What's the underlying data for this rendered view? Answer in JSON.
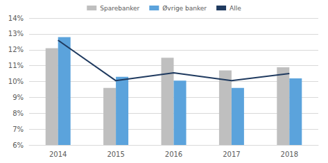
{
  "chart_data": {
    "type": "bar",
    "categories": [
      "2014",
      "2015",
      "2016",
      "2017",
      "2018"
    ],
    "series": [
      {
        "name": "Sparebanker",
        "type": "bar",
        "color": "#bfbfbf",
        "values": [
          12.1,
          9.6,
          11.5,
          10.7,
          10.9
        ]
      },
      {
        "name": "Øvrige banker",
        "type": "bar",
        "color": "#5ba3dc",
        "values": [
          12.8,
          10.3,
          10.05,
          9.6,
          10.2
        ]
      },
      {
        "name": "Alle",
        "type": "line",
        "color": "#1f3a5f",
        "values": [
          12.6,
          10.05,
          10.55,
          10.05,
          10.5
        ]
      }
    ],
    "ylim": [
      6,
      14
    ],
    "yticks": [
      {
        "value": 6,
        "label": "6%"
      },
      {
        "value": 7,
        "label": "7%"
      },
      {
        "value": 8,
        "label": "8%"
      },
      {
        "value": 9,
        "label": "9%"
      },
      {
        "value": 10,
        "label": "10%"
      },
      {
        "value": 11,
        "label": "11%"
      },
      {
        "value": 12,
        "label": "12%"
      },
      {
        "value": 13,
        "label": "13%"
      },
      {
        "value": 14,
        "label": "14%"
      }
    ],
    "grid": true,
    "legend": "top"
  }
}
